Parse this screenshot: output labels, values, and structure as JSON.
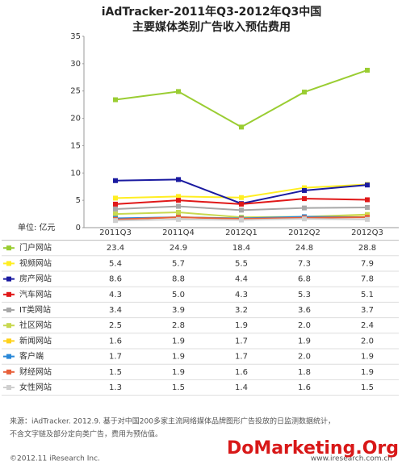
{
  "chart_data": {
    "type": "line",
    "title": [
      "iAdTracker-2011年Q3-2012年Q3中国",
      "主要媒体类别广告收入预估费用"
    ],
    "unit_label": "单位: 亿元",
    "categories": [
      "2011Q3",
      "2011Q4",
      "2012Q1",
      "2012Q2",
      "2012Q3"
    ],
    "ylim": [
      0,
      35
    ],
    "yticks": [
      0,
      5,
      10,
      15,
      20,
      25,
      30,
      35
    ],
    "grid": false,
    "series": [
      {
        "name": "门户网站",
        "color": "#9acd32",
        "values": [
          23.4,
          24.9,
          18.4,
          24.8,
          28.8
        ],
        "value_labels": [
          "23.4",
          "24.9",
          "18.4",
          "24.8",
          "28.8"
        ]
      },
      {
        "name": "视频网站",
        "color": "#ffee22",
        "values": [
          5.4,
          5.7,
          5.5,
          7.3,
          7.9
        ],
        "value_labels": [
          "5.4",
          "5.7",
          "5.5",
          "7.3",
          "7.9"
        ]
      },
      {
        "name": "房产网站",
        "color": "#1a1aa0",
        "values": [
          8.6,
          8.8,
          4.4,
          6.8,
          7.8
        ],
        "value_labels": [
          "8.6",
          "8.8",
          "4.4",
          "6.8",
          "7.8"
        ]
      },
      {
        "name": "汽车网站",
        "color": "#e01818",
        "values": [
          4.3,
          5.0,
          4.3,
          5.3,
          5.1
        ],
        "value_labels": [
          "4.3",
          "5.0",
          "4.3",
          "5.3",
          "5.1"
        ]
      },
      {
        "name": "IT类网站",
        "color": "#a8a8a8",
        "values": [
          3.4,
          3.9,
          3.2,
          3.6,
          3.7
        ],
        "value_labels": [
          "3.4",
          "3.9",
          "3.2",
          "3.6",
          "3.7"
        ]
      },
      {
        "name": "社区网站",
        "color": "#c8d850",
        "values": [
          2.5,
          2.8,
          1.9,
          2.0,
          2.4
        ],
        "value_labels": [
          "2.5",
          "2.8",
          "1.9",
          "2.0",
          "2.4"
        ]
      },
      {
        "name": "新闻网站",
        "color": "#ffd21a",
        "values": [
          1.6,
          1.9,
          1.7,
          1.9,
          2.0
        ],
        "value_labels": [
          "1.6",
          "1.9",
          "1.7",
          "1.9",
          "2.0"
        ]
      },
      {
        "name": "客户端",
        "color": "#2a88d8",
        "values": [
          1.7,
          1.9,
          1.7,
          2.0,
          1.9
        ],
        "value_labels": [
          "1.7",
          "1.9",
          "1.7",
          "2.0",
          "1.9"
        ]
      },
      {
        "name": "财经网站",
        "color": "#e8603a",
        "values": [
          1.5,
          1.9,
          1.6,
          1.8,
          1.9
        ],
        "value_labels": [
          "1.5",
          "1.9",
          "1.6",
          "1.8",
          "1.9"
        ]
      },
      {
        "name": "女性网站",
        "color": "#cfcfcf",
        "values": [
          1.3,
          1.5,
          1.4,
          1.6,
          1.5
        ],
        "value_labels": [
          "1.3",
          "1.5",
          "1.4",
          "1.6",
          "1.5"
        ]
      }
    ],
    "source": [
      "来源：iAdTracker. 2012.9. 基于对中国200多家主流网络媒体品牌图形广告投放的日监测数据统计，",
      "不含文字链及部分定向类广告，费用为预估值。"
    ],
    "copyright": "©2012.11 iResearch Inc.",
    "website": "www.iresearch.com.cn",
    "watermark": "DoMarketing.Org"
  }
}
